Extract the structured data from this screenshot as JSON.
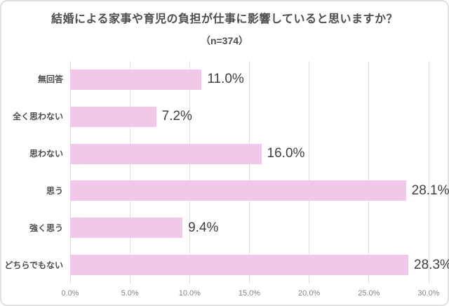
{
  "chart_data": {
    "type": "bar",
    "orientation": "horizontal",
    "title": "結婚による家事や育児の負担が仕事に影響していると思いますか？",
    "subtitle": "（n=374）",
    "categories": [
      "無回答",
      "全く思わない",
      "思わない",
      "思う",
      "強く思う",
      "どちらでもない"
    ],
    "values": [
      11.0,
      7.2,
      16.0,
      28.1,
      9.4,
      28.3
    ],
    "value_labels": [
      "11.0%",
      "7.2%",
      "16.0%",
      "28.1%",
      "9.4%",
      "28.3%"
    ],
    "x_ticks": [
      "0.0%",
      "5.0%",
      "10.0%",
      "15.0%",
      "20.0%",
      "25.0%",
      "30.0%"
    ],
    "x_tick_values": [
      0,
      5,
      10,
      15,
      20,
      25,
      30
    ],
    "xlim": [
      0,
      30
    ],
    "grid": true,
    "legend": "none",
    "colors": {
      "bar_fill": "#f2c8ea",
      "gridline": "#dedede",
      "title_text": "#4d4d4d",
      "category_text": "#4d4d4d",
      "value_text": "#3f3f3f",
      "tick_text": "#858585",
      "frame_border": "#e2e2e2",
      "background": "#ffffff"
    }
  }
}
